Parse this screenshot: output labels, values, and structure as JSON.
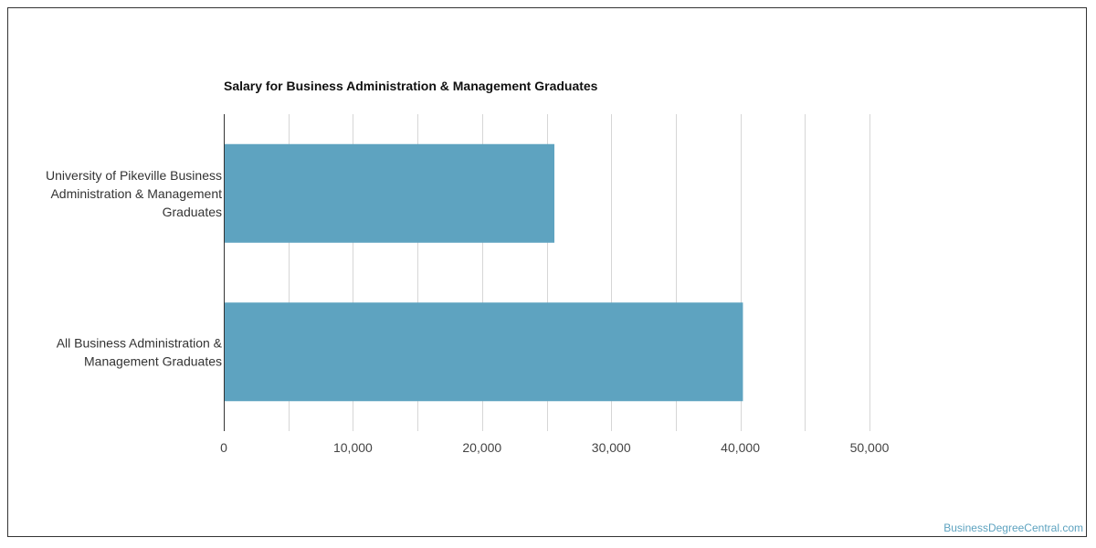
{
  "chart_data": {
    "type": "bar",
    "orientation": "horizontal",
    "title": "Salary for Business Administration & Management Graduates",
    "categories": [
      [
        "University of Pikeville Business",
        "Administration & Management",
        "Graduates"
      ],
      [
        "All Business Administration &",
        "Management Graduates"
      ]
    ],
    "values": [
      25600,
      40200
    ],
    "xlim": [
      0,
      50000
    ],
    "ticks": [
      0,
      10000,
      20000,
      30000,
      40000,
      50000
    ],
    "tick_labels": [
      "0",
      "10,000",
      "20,000",
      "30,000",
      "40,000",
      "50,000"
    ],
    "grid": true,
    "bar_color": "#5ea3c0",
    "grid_color": "#d6d6d6"
  },
  "watermark": "BusinessDegreeCentral.com"
}
